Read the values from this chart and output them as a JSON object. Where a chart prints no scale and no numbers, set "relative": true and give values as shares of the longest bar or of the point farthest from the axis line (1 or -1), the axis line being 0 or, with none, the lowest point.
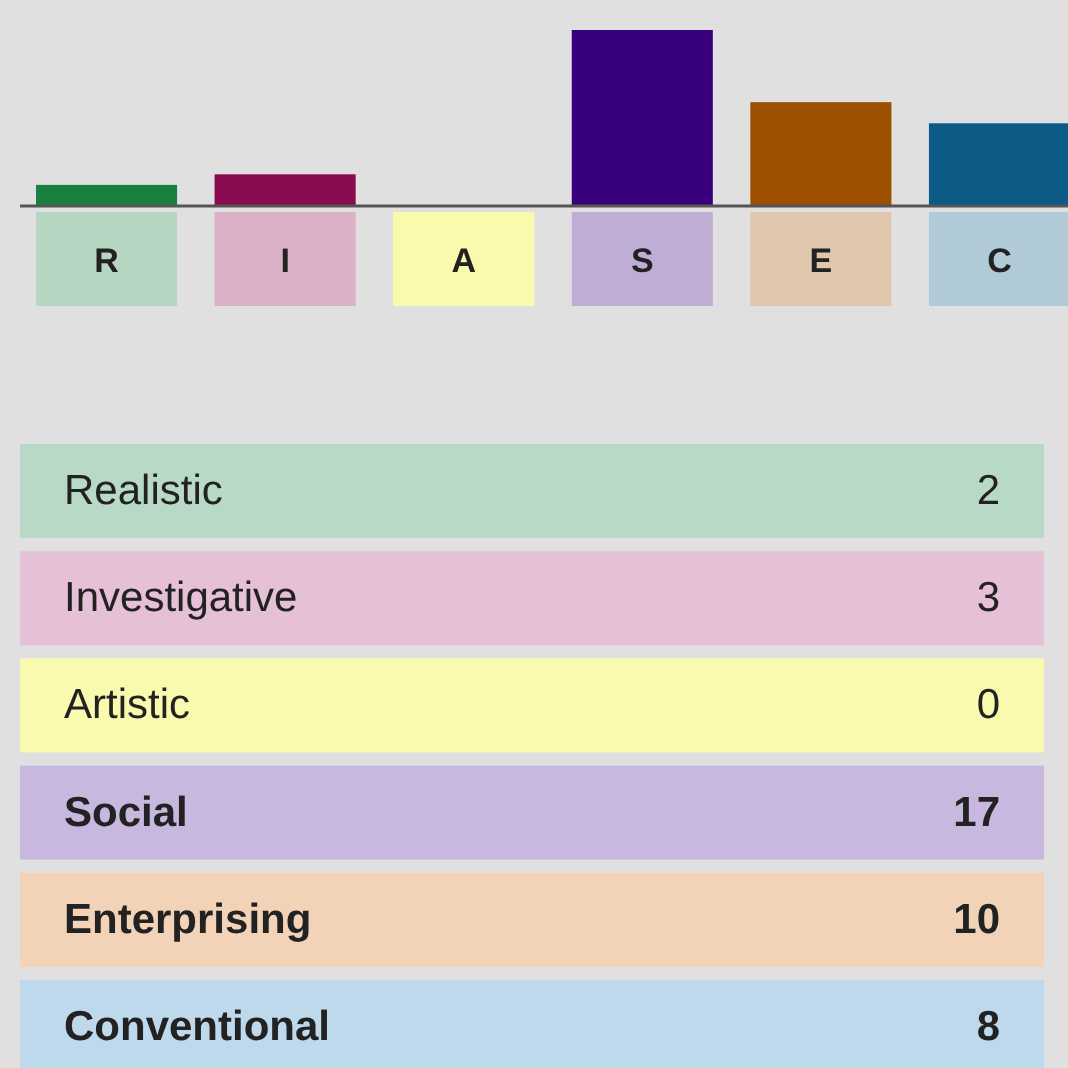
{
  "chart_data": [
    {
      "type": "bar",
      "categories": [
        "R",
        "I",
        "A",
        "S",
        "E",
        "C"
      ],
      "relative": true,
      "values": [
        0.12,
        0.18,
        0,
        1,
        0.59,
        0.47
      ],
      "colors": [
        "#1a8040",
        "#8a0a50",
        "#f0f000",
        "#38007c",
        "#9c5000",
        "#0c5a86"
      ]
    },
    {
      "type": "other",
      "categories": [
        "Realistic",
        "Investigative",
        "Artistic",
        "Social",
        "Enterprising",
        "Conventional"
      ],
      "values": [
        2,
        3,
        0,
        17,
        10,
        8
      ],
      "colors": [
        "#b8d9c6",
        "#e6c0d6",
        "#fafaae",
        "#c8b7de",
        "#f3d3b7",
        "#bed9ec"
      ],
      "data_labels": true
    }
  ]
}
